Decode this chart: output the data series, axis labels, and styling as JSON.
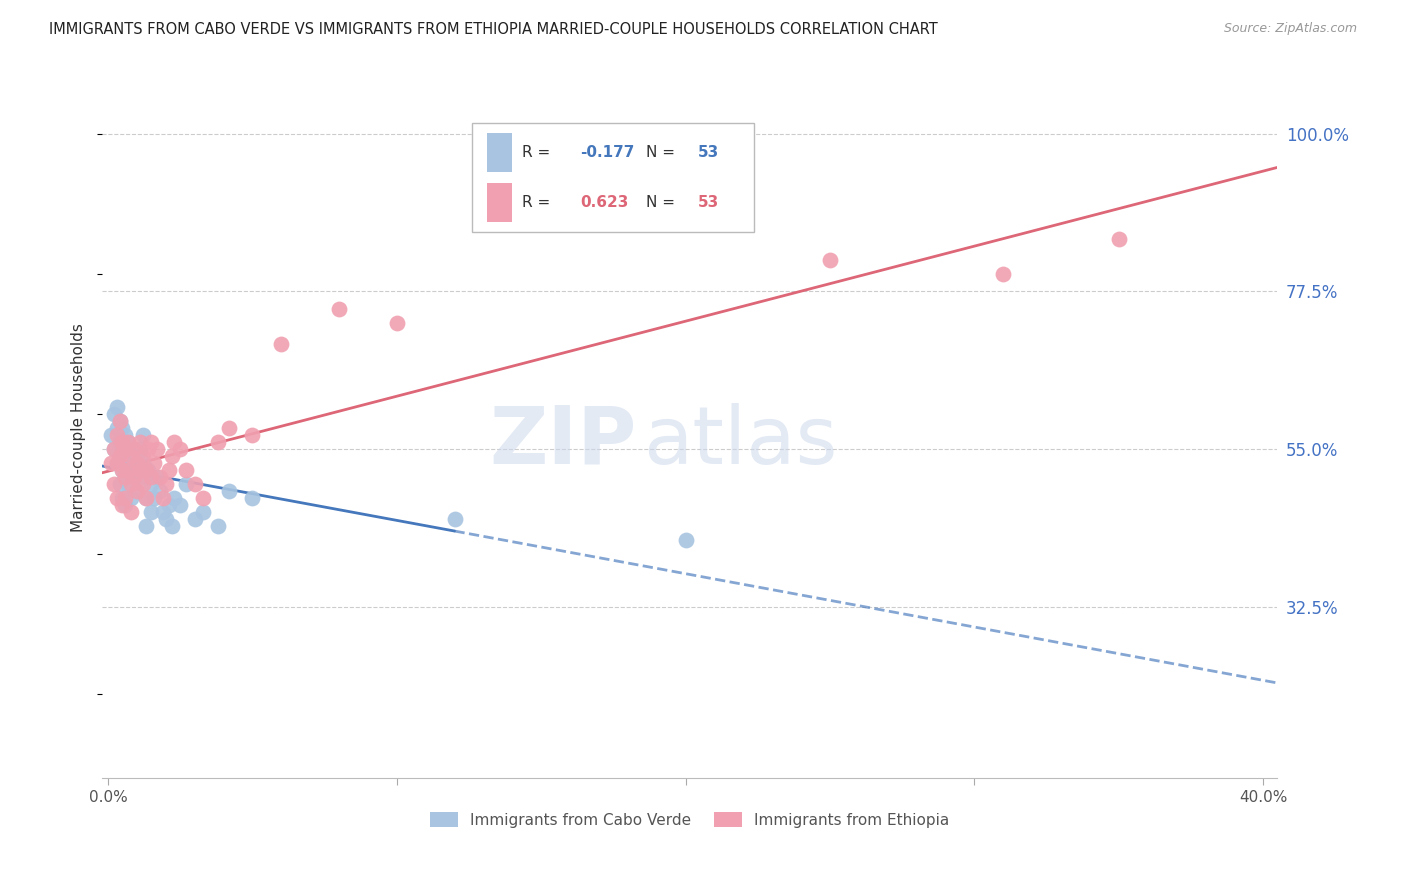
{
  "title": "IMMIGRANTS FROM CABO VERDE VS IMMIGRANTS FROM ETHIOPIA MARRIED-COUPLE HOUSEHOLDS CORRELATION CHART",
  "source": "Source: ZipAtlas.com",
  "ylabel": "Married-couple Households",
  "ytick_labels": [
    "100.0%",
    "77.5%",
    "55.0%",
    "32.5%"
  ],
  "ytick_values": [
    1.0,
    0.775,
    0.55,
    0.325
  ],
  "ymin": 0.08,
  "ymax": 1.08,
  "xmin": -0.002,
  "xmax": 0.405,
  "cabo_R": -0.177,
  "cabo_N": 53,
  "ethiopia_R": 0.623,
  "ethiopia_N": 53,
  "cabo_color": "#a8c4e0",
  "ethiopia_color": "#f0a0b0",
  "cabo_line_color": "#4477bb",
  "ethiopia_line_color": "#dd6677",
  "cabo_verde_x": [
    0.001,
    0.002,
    0.002,
    0.003,
    0.003,
    0.003,
    0.004,
    0.004,
    0.004,
    0.005,
    0.005,
    0.005,
    0.005,
    0.006,
    0.006,
    0.006,
    0.006,
    0.007,
    0.007,
    0.007,
    0.008,
    0.008,
    0.008,
    0.009,
    0.009,
    0.01,
    0.01,
    0.011,
    0.011,
    0.012,
    0.012,
    0.013,
    0.013,
    0.014,
    0.015,
    0.015,
    0.016,
    0.017,
    0.018,
    0.019,
    0.02,
    0.021,
    0.022,
    0.023,
    0.025,
    0.027,
    0.03,
    0.033,
    0.038,
    0.042,
    0.05,
    0.12,
    0.2
  ],
  "cabo_verde_y": [
    0.57,
    0.6,
    0.55,
    0.61,
    0.58,
    0.53,
    0.59,
    0.56,
    0.5,
    0.58,
    0.55,
    0.52,
    0.48,
    0.57,
    0.54,
    0.51,
    0.47,
    0.56,
    0.53,
    0.5,
    0.55,
    0.52,
    0.48,
    0.54,
    0.51,
    0.53,
    0.49,
    0.55,
    0.51,
    0.57,
    0.53,
    0.48,
    0.44,
    0.52,
    0.5,
    0.46,
    0.48,
    0.51,
    0.49,
    0.46,
    0.45,
    0.47,
    0.44,
    0.48,
    0.47,
    0.5,
    0.45,
    0.46,
    0.44,
    0.49,
    0.48,
    0.45,
    0.42
  ],
  "ethiopia_x": [
    0.001,
    0.002,
    0.002,
    0.003,
    0.003,
    0.003,
    0.004,
    0.004,
    0.005,
    0.005,
    0.005,
    0.006,
    0.006,
    0.006,
    0.007,
    0.007,
    0.008,
    0.008,
    0.008,
    0.009,
    0.009,
    0.01,
    0.01,
    0.011,
    0.011,
    0.012,
    0.012,
    0.013,
    0.013,
    0.014,
    0.015,
    0.015,
    0.016,
    0.017,
    0.018,
    0.019,
    0.02,
    0.021,
    0.022,
    0.023,
    0.025,
    0.027,
    0.03,
    0.033,
    0.038,
    0.042,
    0.05,
    0.06,
    0.08,
    0.1,
    0.25,
    0.31,
    0.35
  ],
  "ethiopia_y": [
    0.53,
    0.55,
    0.5,
    0.57,
    0.53,
    0.48,
    0.59,
    0.54,
    0.56,
    0.52,
    0.47,
    0.55,
    0.51,
    0.48,
    0.56,
    0.52,
    0.54,
    0.5,
    0.46,
    0.55,
    0.51,
    0.53,
    0.49,
    0.56,
    0.52,
    0.54,
    0.5,
    0.52,
    0.48,
    0.55,
    0.51,
    0.56,
    0.53,
    0.55,
    0.51,
    0.48,
    0.5,
    0.52,
    0.54,
    0.56,
    0.55,
    0.52,
    0.5,
    0.48,
    0.56,
    0.58,
    0.57,
    0.7,
    0.75,
    0.73,
    0.82,
    0.8,
    0.85
  ],
  "watermark_zip": "ZIP",
  "watermark_atlas": "atlas",
  "legend_cabo_r": "R = ",
  "legend_cabo_rv": "-0.177",
  "legend_cabo_n": "N = ",
  "legend_cabo_nv": "53",
  "legend_eth_r": "R = ",
  "legend_eth_rv": "0.623",
  "legend_eth_n": "N = ",
  "legend_eth_nv": "53"
}
